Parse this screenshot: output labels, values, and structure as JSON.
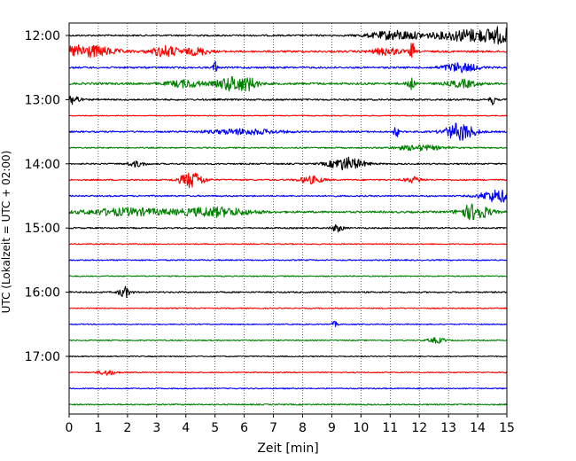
{
  "chart_data": {
    "type": "line",
    "title": "",
    "xlabel": "Zeit  [min]",
    "ylabel": "UTC (Lokalzeit = UTC + 02:00)",
    "xlim": [
      0,
      15
    ],
    "x_ticks": [
      0,
      1,
      2,
      3,
      4,
      5,
      6,
      7,
      8,
      9,
      10,
      11,
      12,
      13,
      14,
      15
    ],
    "y_ticks": [
      "12:00",
      "13:00",
      "14:00",
      "15:00",
      "16:00",
      "17:00"
    ],
    "row_interval_minutes": 15,
    "grid": "vertical dotted",
    "legend": "none",
    "trace_colors": [
      "#000000",
      "#ff0000",
      "#0000ff",
      "#008000"
    ],
    "series": [
      {
        "start": "12:00",
        "color": "#000000",
        "noise": 0.9,
        "events": [
          {
            "t": 11.2,
            "amp": 5,
            "dur": 0.9
          },
          {
            "t": 13.8,
            "amp": 7,
            "dur": 1.2
          },
          {
            "t": 14.8,
            "amp": 6,
            "dur": 0.4
          }
        ]
      },
      {
        "start": "12:15",
        "color": "#ff0000",
        "noise": 1.1,
        "events": [
          {
            "t": 0.5,
            "amp": 7,
            "dur": 1.0
          },
          {
            "t": 3.3,
            "amp": 6,
            "dur": 0.5
          },
          {
            "t": 4.4,
            "amp": 4,
            "dur": 0.4
          },
          {
            "t": 10.9,
            "amp": 4,
            "dur": 0.5
          },
          {
            "t": 11.75,
            "amp": 10,
            "dur": 0.08
          }
        ]
      },
      {
        "start": "12:30",
        "color": "#0000ff",
        "noise": 1.0,
        "events": [
          {
            "t": 5.0,
            "amp": 9,
            "dur": 0.06
          },
          {
            "t": 13.4,
            "amp": 5,
            "dur": 0.6
          }
        ]
      },
      {
        "start": "12:45",
        "color": "#008000",
        "noise": 1.2,
        "events": [
          {
            "t": 4.0,
            "amp": 4,
            "dur": 0.6
          },
          {
            "t": 5.6,
            "amp": 8,
            "dur": 0.5
          },
          {
            "t": 6.2,
            "amp": 5,
            "dur": 0.3
          },
          {
            "t": 11.7,
            "amp": 7,
            "dur": 0.12
          },
          {
            "t": 13.5,
            "amp": 4,
            "dur": 0.5
          }
        ]
      },
      {
        "start": "13:00",
        "color": "#000000",
        "noise": 0.9,
        "events": [
          {
            "t": 0.15,
            "amp": 6,
            "dur": 0.2
          },
          {
            "t": 14.5,
            "amp": 5,
            "dur": 0.1
          }
        ]
      },
      {
        "start": "13:15",
        "color": "#ff0000",
        "noise": 0.5,
        "events": []
      },
      {
        "start": "13:30",
        "color": "#0000ff",
        "noise": 0.9,
        "events": [
          {
            "t": 6.0,
            "amp": 3,
            "dur": 1.2
          },
          {
            "t": 11.2,
            "amp": 7,
            "dur": 0.08
          },
          {
            "t": 13.4,
            "amp": 10,
            "dur": 0.5
          }
        ]
      },
      {
        "start": "13:45",
        "color": "#008000",
        "noise": 0.7,
        "events": [
          {
            "t": 12.0,
            "amp": 3,
            "dur": 0.8
          }
        ]
      },
      {
        "start": "14:00",
        "color": "#000000",
        "noise": 0.8,
        "events": [
          {
            "t": 2.3,
            "amp": 3,
            "dur": 0.3
          },
          {
            "t": 9.5,
            "amp": 7,
            "dur": 0.6
          }
        ]
      },
      {
        "start": "14:15",
        "color": "#ff0000",
        "noise": 0.8,
        "events": [
          {
            "t": 4.2,
            "amp": 9,
            "dur": 0.4
          },
          {
            "t": 8.3,
            "amp": 4,
            "dur": 0.4
          },
          {
            "t": 11.8,
            "amp": 3,
            "dur": 0.3
          }
        ]
      },
      {
        "start": "14:30",
        "color": "#0000ff",
        "noise": 0.8,
        "events": [
          {
            "t": 14.7,
            "amp": 7,
            "dur": 0.6
          }
        ]
      },
      {
        "start": "14:45",
        "color": "#008000",
        "noise": 1.1,
        "events": [
          {
            "t": 2.0,
            "amp": 4,
            "dur": 1.5
          },
          {
            "t": 5.0,
            "amp": 5,
            "dur": 1.2
          },
          {
            "t": 13.9,
            "amp": 9,
            "dur": 0.5
          }
        ]
      },
      {
        "start": "15:00",
        "color": "#000000",
        "noise": 0.8,
        "events": [
          {
            "t": 9.2,
            "amp": 4,
            "dur": 0.2
          }
        ]
      },
      {
        "start": "15:15",
        "color": "#ff0000",
        "noise": 0.6,
        "events": []
      },
      {
        "start": "15:30",
        "color": "#0000ff",
        "noise": 0.7,
        "events": []
      },
      {
        "start": "15:45",
        "color": "#008000",
        "noise": 0.6,
        "events": []
      },
      {
        "start": "16:00",
        "color": "#000000",
        "noise": 0.8,
        "events": [
          {
            "t": 1.9,
            "amp": 6,
            "dur": 0.2
          }
        ]
      },
      {
        "start": "16:15",
        "color": "#ff0000",
        "noise": 0.6,
        "events": []
      },
      {
        "start": "16:30",
        "color": "#0000ff",
        "noise": 0.6,
        "events": [
          {
            "t": 9.1,
            "amp": 3,
            "dur": 0.1
          }
        ]
      },
      {
        "start": "16:45",
        "color": "#008000",
        "noise": 0.6,
        "events": [
          {
            "t": 12.6,
            "amp": 3,
            "dur": 0.3
          }
        ]
      },
      {
        "start": "17:00",
        "color": "#000000",
        "noise": 0.6,
        "events": []
      },
      {
        "start": "17:15",
        "color": "#ff0000",
        "noise": 0.6,
        "events": [
          {
            "t": 1.3,
            "amp": 3,
            "dur": 0.3
          }
        ]
      },
      {
        "start": "17:30",
        "color": "#0000ff",
        "noise": 0.6,
        "events": []
      },
      {
        "start": "17:45",
        "color": "#008000",
        "noise": 0.7,
        "events": []
      }
    ]
  }
}
